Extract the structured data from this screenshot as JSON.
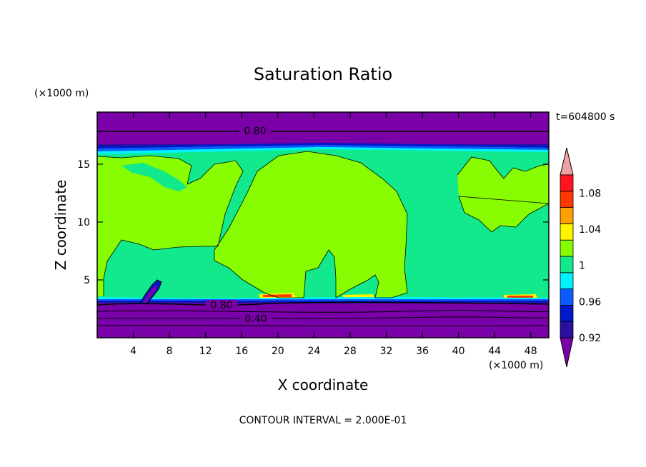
{
  "chart_data": {
    "type": "contour",
    "title": "Saturation Ratio",
    "xlabel": "X coordinate",
    "ylabel": "Z coordinate",
    "x_unit_label": "(×1000 m)",
    "y_unit_label": "(×1000 m)",
    "time_label": "t=604800 s",
    "footer": "CONTOUR INTERVAL = 2.000E-01",
    "xlim": [
      0,
      50
    ],
    "ylim": [
      0,
      19.5
    ],
    "x_ticks": [
      4,
      8,
      12,
      16,
      20,
      24,
      28,
      32,
      36,
      40,
      44,
      48
    ],
    "y_ticks": [
      5,
      10,
      15
    ],
    "colorbar": {
      "tick_labels": [
        "1.08",
        "1.04",
        "1",
        "0.96",
        "0.92"
      ],
      "tick_values": [
        1.08,
        1.04,
        1.0,
        0.96,
        0.92
      ],
      "levels": [
        0.9,
        0.92,
        0.94,
        0.96,
        0.98,
        1.0,
        1.02,
        1.04,
        1.06,
        1.08,
        1.1
      ],
      "colors": [
        "#7a00a8",
        "#2a0fa0",
        "#0019c8",
        "#0a5cff",
        "#00f2ff",
        "#12e88c",
        "#88fc00",
        "#fff400",
        "#ffa000",
        "#ff3700",
        "#ff1420",
        "#f0a0a0"
      ]
    },
    "contour_labels": [
      {
        "text": "0.80",
        "x": 17.9,
        "z": 18.2
      },
      {
        "text": "0.80",
        "x": 13.9,
        "z": 2.9
      },
      {
        "text": "0.40",
        "x": 17.5,
        "z": 1.7
      }
    ]
  }
}
